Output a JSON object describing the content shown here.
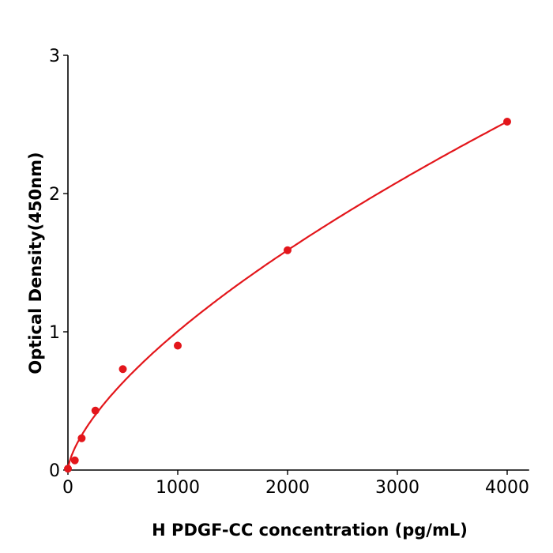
{
  "chart_data": {
    "type": "scatter",
    "xlabel": "H  PDGF-CC concentration (pg/mL)",
    "ylabel": "Optical Density(450nm)",
    "xlim": [
      0,
      4200
    ],
    "ylim": [
      0,
      3
    ],
    "xticks": [
      "0",
      "1000",
      "2000",
      "3000",
      "4000"
    ],
    "yticks": [
      "0",
      "1",
      "2",
      "3"
    ],
    "grid": false,
    "series": [
      {
        "x": [
          0,
          62.5,
          125,
          250,
          500,
          1000,
          2000,
          4000
        ],
        "y": [
          0.01,
          0.07,
          0.23,
          0.43,
          0.73,
          0.9,
          1.59,
          2.52
        ],
        "color": "#e3161b",
        "fit": "curve"
      }
    ]
  }
}
